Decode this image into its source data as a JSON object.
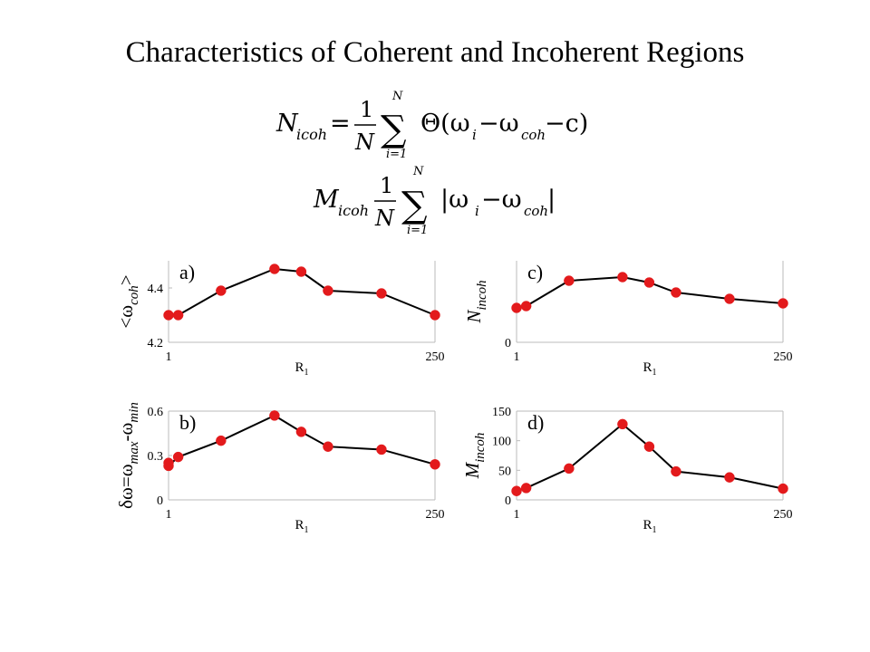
{
  "slide": {
    "title": "Characteristics of Coherent and Incoherent Regions"
  },
  "formulas": {
    "n_incoh": {
      "lhs": "N",
      "lhs_sub": "icoh",
      "eq": "=",
      "frac_num": "1",
      "frac_den": "N",
      "sum_top": "N",
      "sum_bottom": "i=1",
      "body": "Θ(ω",
      "body_sub_i": "i",
      "body_mid": "−ω",
      "body_sub_coh": "coh",
      "body_end": "−c)"
    },
    "m_incoh": {
      "lhs": "M",
      "lhs_sub": "icoh",
      "frac_num": "1",
      "frac_den": "N",
      "sum_top": "N",
      "sum_bottom": "i=1",
      "body": "|ω",
      "body_sub_i": "i",
      "body_mid": "−ω",
      "body_sub_coh": "coh",
      "body_end": "|"
    }
  },
  "colors": {
    "marker": "#e31a1c",
    "line": "#000000",
    "axis": "#bbbbbb"
  },
  "chart_data": [
    {
      "id": "a",
      "type": "line",
      "panel_label": "a)",
      "ylabel": "<ω",
      "ylabel_sub": "coh",
      "ylabel_end": ">",
      "xlabel": "R",
      "xlabel_sub": "1",
      "xlim": [
        1,
        250
      ],
      "ylim": [
        4.2,
        4.5
      ],
      "xticks": [
        1,
        250
      ],
      "yticks": [
        4.2,
        4.4
      ],
      "x": [
        1,
        10,
        50,
        100,
        125,
        150,
        200,
        250
      ],
      "y": [
        4.3,
        4.3,
        4.39,
        4.47,
        4.46,
        4.39,
        4.38,
        4.3
      ]
    },
    {
      "id": "c",
      "type": "line",
      "panel_label": "c)",
      "ylabel": "N",
      "ylabel_sub": "incoh",
      "ylabel_end": "",
      "xlabel": "R",
      "xlabel_sub": "1",
      "xlim": [
        1,
        250
      ],
      "ylim": [
        0,
        0.9
      ],
      "xticks": [
        1,
        250
      ],
      "yticks": [
        0
      ],
      "x": [
        1,
        10,
        50,
        100,
        125,
        150,
        200,
        250
      ],
      "y": [
        0.38,
        0.4,
        0.68,
        0.72,
        0.66,
        0.55,
        0.48,
        0.43
      ]
    },
    {
      "id": "b",
      "type": "line",
      "panel_label": "b)",
      "ylabel": "δω=ω",
      "ylabel_sub": "max",
      "ylabel_end": "-ω",
      "ylabel_sub2": "min",
      "xlabel": "R",
      "xlabel_sub": "1",
      "xlim": [
        1,
        250
      ],
      "ylim": [
        0,
        0.6
      ],
      "xticks": [
        1,
        250
      ],
      "yticks": [
        0,
        0.3,
        0.6
      ],
      "x": [
        1,
        1,
        10,
        50,
        100,
        125,
        150,
        200,
        250
      ],
      "y": [
        0.25,
        0.23,
        0.29,
        0.4,
        0.57,
        0.46,
        0.36,
        0.34,
        0.24
      ]
    },
    {
      "id": "d",
      "type": "line",
      "panel_label": "d)",
      "ylabel": "M",
      "ylabel_sub": "incoh",
      "ylabel_end": "",
      "xlabel": "R",
      "xlabel_sub": "1",
      "xlim": [
        1,
        250
      ],
      "ylim": [
        0,
        150
      ],
      "xticks": [
        1,
        250
      ],
      "yticks": [
        0,
        50,
        100,
        150
      ],
      "x": [
        1,
        10,
        50,
        100,
        125,
        150,
        200,
        250
      ],
      "y": [
        15,
        20,
        53,
        128,
        90,
        48,
        38,
        19
      ]
    }
  ]
}
